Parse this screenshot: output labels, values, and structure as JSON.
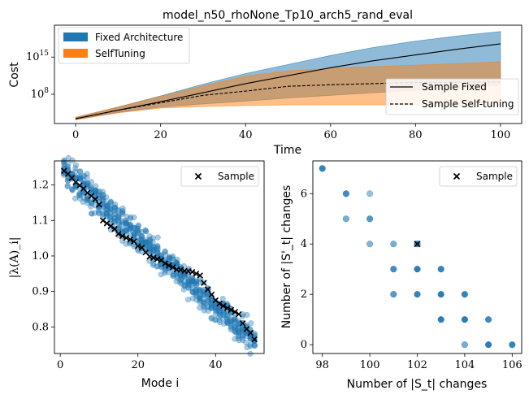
{
  "figure": {
    "title": "model_n50_rhoNone_Tp10_arch5_rand_eval"
  },
  "colors": {
    "fixed": "#1f77b4",
    "selftuning": "#ff7f0e"
  },
  "chart_data": [
    {
      "type": "line",
      "title": "model_n50_rhoNone_Tp10_arch5_rand_eval",
      "xlabel": "Time",
      "ylabel": "Cost",
      "xlim": [
        -5,
        105
      ],
      "yscale": "log",
      "ylim_log10": [
        2.5,
        21.0
      ],
      "x_ticks": [
        0,
        20,
        40,
        60,
        80,
        100
      ],
      "y_ticks": [
        {
          "log10": 8,
          "label": "10",
          "exp": "8"
        },
        {
          "log10": 15,
          "label": "10",
          "exp": "15"
        }
      ],
      "legend_top_left": [
        {
          "name": "Fixed Architecture",
          "color": "#1f77b4"
        },
        {
          "name": "SelfTuning",
          "color": "#ff7f0e"
        }
      ],
      "legend_bottom_right": [
        {
          "name": "Sample Fixed",
          "style": "solid"
        },
        {
          "name": "Sample Self-tuning",
          "style": "dashed"
        }
      ],
      "x": [
        0,
        10,
        20,
        30,
        40,
        50,
        60,
        70,
        80,
        90,
        100
      ],
      "series": [
        {
          "key": "fixed_upper",
          "values_log10": [
            3.6,
            5.6,
            7.7,
            9.9,
            11.9,
            13.6,
            15.3,
            16.8,
            18.0,
            19.0,
            19.8
          ]
        },
        {
          "key": "fixed_lower",
          "values_log10": [
            3.2,
            4.6,
            5.6,
            6.2,
            6.7,
            7.3,
            7.8,
            8.3,
            8.7,
            9.2,
            9.7
          ]
        },
        {
          "key": "fixed_sample",
          "values_log10": [
            3.4,
            5.0,
            6.6,
            8.3,
            10.0,
            11.5,
            13.0,
            14.3,
            15.4,
            16.5,
            17.5
          ]
        },
        {
          "key": "self_upper",
          "values_log10": [
            3.7,
            5.6,
            7.6,
            9.6,
            11.4,
            12.4,
            12.9,
            13.2,
            13.5,
            13.8,
            14.1
          ]
        },
        {
          "key": "self_lower",
          "values_log10": [
            3.2,
            4.5,
            5.4,
            5.7,
            5.9,
            6.0,
            6.0,
            6.0,
            6.0,
            6.0,
            6.0
          ]
        },
        {
          "key": "self_sample",
          "values_log10": [
            3.4,
            5.0,
            6.4,
            7.8,
            8.6,
            9.5,
            9.8,
            10.0,
            10.2,
            10.3,
            10.3
          ]
        }
      ]
    },
    {
      "type": "scatter",
      "xlabel": "Mode i",
      "ylabel": "|λ(A)_i|",
      "xlim": [
        -1.5,
        52.5
      ],
      "ylim": [
        0.725,
        1.268
      ],
      "x_ticks": [
        0,
        20,
        40
      ],
      "y_ticks": [
        0.8,
        0.9,
        1.0,
        1.1,
        1.2
      ],
      "legend": [
        {
          "name": "Sample",
          "marker": "x"
        }
      ],
      "cloud": {
        "start": 1.24,
        "end": 0.76,
        "spread": 0.022,
        "n_modes": 50,
        "per_mode": 14,
        "seed": 7
      },
      "sample_y": [
        1.24,
        1.231,
        1.22,
        1.208,
        1.199,
        1.19,
        1.178,
        1.169,
        1.16,
        1.145,
        1.1,
        1.092,
        1.084,
        1.076,
        1.062,
        1.056,
        1.051,
        1.046,
        1.041,
        1.028,
        1.023,
        1.01,
        0.998,
        0.995,
        0.991,
        0.988,
        0.979,
        0.973,
        0.968,
        0.962,
        0.961,
        0.958,
        0.957,
        0.955,
        0.95,
        0.945,
        0.924,
        0.906,
        0.891,
        0.875,
        0.866,
        0.859,
        0.853,
        0.848,
        0.842,
        0.836,
        0.81,
        0.794,
        0.783,
        0.765
      ]
    },
    {
      "type": "scatter",
      "xlabel": "Number of |S_t| changes",
      "ylabel": "Number of |S'_t| changes",
      "xlim": [
        97.6,
        106.4
      ],
      "ylim": [
        -0.35,
        7.3
      ],
      "x_ticks": [
        98,
        100,
        102,
        104,
        106
      ],
      "y_ticks": [
        0,
        2,
        4,
        6
      ],
      "legend": [
        {
          "name": "Sample",
          "marker": "x"
        }
      ],
      "points": [
        {
          "x": 98,
          "y": 7,
          "alpha": 0.9
        },
        {
          "x": 99,
          "y": 6,
          "alpha": 0.85
        },
        {
          "x": 99,
          "y": 5,
          "alpha": 0.6
        },
        {
          "x": 100,
          "y": 6,
          "alpha": 0.45
        },
        {
          "x": 100,
          "y": 5,
          "alpha": 0.75
        },
        {
          "x": 100,
          "y": 4,
          "alpha": 0.55
        },
        {
          "x": 101,
          "y": 4,
          "alpha": 0.6
        },
        {
          "x": 101,
          "y": 3,
          "alpha": 0.85
        },
        {
          "x": 101,
          "y": 2,
          "alpha": 0.75
        },
        {
          "x": 102,
          "y": 4,
          "alpha": 0.9
        },
        {
          "x": 102,
          "y": 3,
          "alpha": 0.95
        },
        {
          "x": 102,
          "y": 2,
          "alpha": 0.9
        },
        {
          "x": 103,
          "y": 3,
          "alpha": 0.9
        },
        {
          "x": 103,
          "y": 2,
          "alpha": 0.95
        },
        {
          "x": 103,
          "y": 1,
          "alpha": 0.95
        },
        {
          "x": 104,
          "y": 2,
          "alpha": 0.9
        },
        {
          "x": 104,
          "y": 1,
          "alpha": 0.95
        },
        {
          "x": 104,
          "y": 0,
          "alpha": 0.6
        },
        {
          "x": 105,
          "y": 1,
          "alpha": 0.85
        },
        {
          "x": 105,
          "y": 0,
          "alpha": 0.95
        },
        {
          "x": 106,
          "y": 0,
          "alpha": 0.9
        }
      ],
      "sample_points": [
        {
          "x": 102,
          "y": 4
        }
      ]
    }
  ]
}
